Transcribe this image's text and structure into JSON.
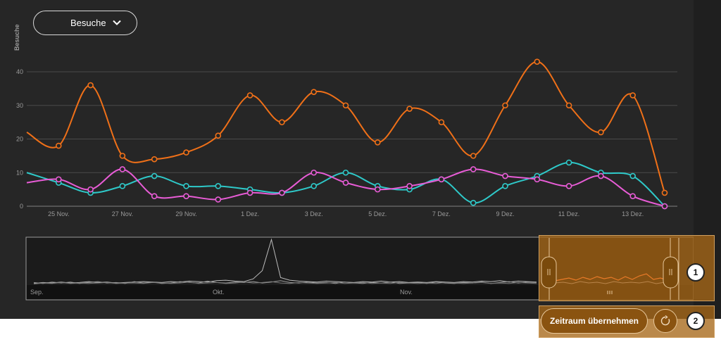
{
  "metric_select": {
    "value": "Besuche",
    "icon": "chevron-down-icon"
  },
  "chart_data": {
    "type": "line",
    "ylabel": "Besuche",
    "ylim": [
      0,
      45
    ],
    "yticks": [
      0,
      10,
      20,
      30,
      40
    ],
    "x": [
      "24 Nov.",
      "25 Nov.",
      "26 Nov.",
      "27 Nov.",
      "28 Nov.",
      "29 Nov.",
      "30 Nov.",
      "1 Dez.",
      "2 Dez.",
      "3 Dez.",
      "4 Dez.",
      "5 Dez.",
      "6 Dez.",
      "7 Dez.",
      "8 Dez.",
      "9 Dez.",
      "10 Dez.",
      "11 Dez.",
      "12 Dez.",
      "13 Dez.",
      "14 Dez."
    ],
    "xtick_labels": [
      "25 Nov.",
      "27 Nov.",
      "29 Nov.",
      "1 Dez.",
      "3 Dez.",
      "5 Dez.",
      "7 Dez.",
      "9 Dez.",
      "11 Dez.",
      "13 Dez."
    ],
    "grid": true,
    "series": [
      {
        "color": "#f07018",
        "values": [
          22,
          18,
          36,
          15,
          14,
          16,
          21,
          33,
          25,
          34,
          30,
          19,
          29,
          25,
          15,
          30,
          43,
          30,
          22,
          33,
          4
        ]
      },
      {
        "color": "#2ec9c9",
        "values": [
          10,
          7,
          4,
          6,
          9,
          6,
          6,
          5,
          4,
          6,
          10,
          6,
          5,
          8,
          1,
          6,
          9,
          13,
          10,
          9,
          0
        ]
      },
      {
        "color": "#e85cd6",
        "values": [
          7,
          8,
          5,
          11,
          3,
          3,
          2,
          4,
          4,
          10,
          7,
          5,
          6,
          8,
          11,
          9,
          8,
          6,
          9,
          3,
          0
        ]
      }
    ]
  },
  "overview": {
    "month_labels": [
      "Sep.",
      "Okt.",
      "Nov."
    ],
    "series": [
      {
        "color": "#bbbbbb",
        "values": [
          2,
          4,
          3,
          5,
          3,
          4,
          6,
          4,
          5,
          3,
          4,
          5,
          6,
          5,
          4,
          6,
          5,
          7,
          6,
          5,
          8,
          9,
          7,
          6,
          12,
          30,
          98,
          15,
          9,
          7,
          6,
          5,
          7,
          6,
          5,
          4,
          6,
          5,
          7,
          5,
          6,
          4,
          5,
          4,
          6,
          5,
          4,
          6,
          5,
          7,
          6,
          8,
          5,
          7,
          6,
          5
        ]
      },
      {
        "color": "#999999",
        "values": [
          4,
          2,
          5,
          3,
          5,
          2,
          4,
          6,
          3,
          4,
          2,
          6,
          3,
          5,
          2,
          3,
          6,
          4,
          3,
          7,
          4,
          3,
          5,
          4,
          6,
          3,
          5,
          8,
          4,
          3,
          5,
          3,
          4,
          2,
          5,
          3,
          2,
          4,
          3,
          5,
          2,
          3,
          4,
          2,
          5,
          3,
          2,
          4,
          3,
          5,
          2,
          4,
          6,
          3,
          5,
          4
        ]
      },
      {
        "color": "#777777",
        "values": [
          1,
          3,
          2,
          4,
          2,
          3,
          2,
          3,
          4,
          2,
          3,
          3,
          2,
          4,
          3,
          2,
          3,
          5,
          2,
          3,
          4,
          2,
          3,
          5,
          3,
          4,
          6,
          3,
          2,
          4,
          3,
          2,
          3,
          4,
          2,
          3,
          4,
          2,
          3,
          2,
          4,
          3,
          2,
          3,
          2,
          4,
          3,
          2,
          3,
          4,
          2,
          3,
          2,
          4,
          3,
          2
        ]
      }
    ]
  },
  "apply_button": {
    "label": "Zeitraum übernehmen"
  },
  "reset_button": {
    "icon": "refresh-icon"
  },
  "badges": [
    "1",
    "2"
  ]
}
